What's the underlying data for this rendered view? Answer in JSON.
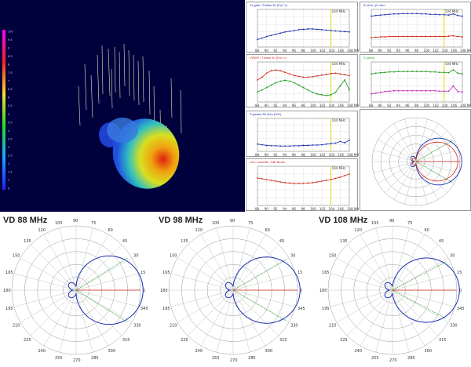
{
  "colors": {
    "background_3d": "#00003d",
    "series_blue": "#1a2fb0",
    "series_red": "#d02818",
    "series_green": "#1a9a1a",
    "series_magenta": "#c020c0",
    "marker_yellow": "#e8d800",
    "polar_blue": "#1a2fb0",
    "polar_red": "#d02818",
    "polar_green": "#1a9a1a"
  },
  "colorbar": {
    "labels": [
      "100",
      "9.5",
      "9",
      "8.5",
      "8",
      "7.5",
      "7",
      "6.5",
      "6",
      "5.5",
      "5",
      "4.5",
      "4",
      "3.5",
      "3",
      "2.5",
      "2",
      "1.5",
      "1",
      "0"
    ]
  },
  "panels": {
    "gain": {
      "title": "Tx gain / Ttxline 90 (Pol: V)",
      "marker": "104 MHz"
    },
    "swr": {
      "title": "VSWR / Ttxline 90 (Pol: V)",
      "marker": "104 MHz"
    },
    "sparam": {
      "title": "S-param 50 ohm (S11)",
      "marker": "104 MHz"
    },
    "loss": {
      "title": "Line Loss/dB / 3dB Beam",
      "marker": "104 MHz"
    },
    "ratio": {
      "title": "R ohm / jX ohm",
      "marker": "104 MHz"
    },
    "zin": {
      "title": "Z (ohm)",
      "marker": "104 MHz"
    },
    "freq_ticks": [
      "88",
      "90",
      "92",
      "94",
      "96",
      "98",
      "100",
      "102",
      "104",
      "106",
      "108 MHz"
    ]
  },
  "polars": [
    {
      "title": "VD 88 MHz"
    },
    {
      "title": "VD 98 MHz"
    },
    {
      "title": "VD 108 MHz"
    }
  ],
  "polar_angles": [
    "90",
    "75",
    "60",
    "45",
    "30",
    "15",
    "180",
    "345",
    "330",
    "315",
    "300",
    "285",
    "270",
    "255",
    "240",
    "225",
    "210",
    "195",
    "165",
    "150",
    "135",
    "120",
    "105"
  ],
  "polar_top_label": "90"
}
